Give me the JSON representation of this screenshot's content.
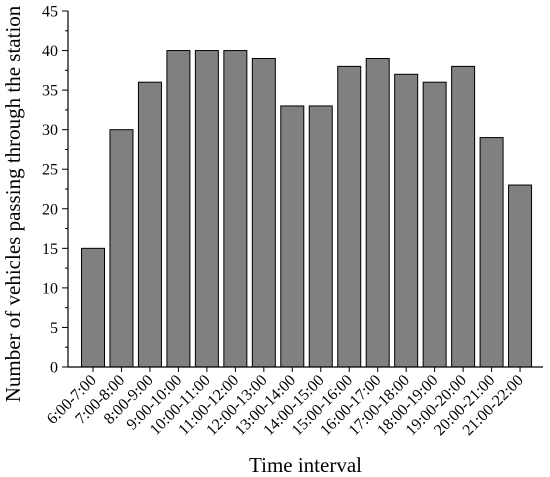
{
  "chart_data": {
    "type": "bar",
    "title": "",
    "xlabel": "Time interval",
    "ylabel": "Number of vehicles passing through the station",
    "categories": [
      "6:00-7:00",
      "7:00-8:00",
      "8:00-9:00",
      "9:00-10:00",
      "10:00-11:00",
      "11:00-12:00",
      "12:00-13:00",
      "13:00-14:00",
      "14:00-15:00",
      "15:00-16:00",
      "16:00-17:00",
      "17:00-18:00",
      "18:00-19:00",
      "19:00-20:00",
      "20:00-21:00",
      "21:00-22:00"
    ],
    "values": [
      15,
      30,
      36,
      40,
      40,
      40,
      39,
      33,
      33,
      38,
      39,
      37,
      36,
      38,
      29,
      23
    ],
    "ylim": [
      0,
      45
    ],
    "yticks": [
      0,
      5,
      10,
      15,
      20,
      25,
      30,
      35,
      40,
      45
    ],
    "grid": false,
    "legend": "none",
    "bar_color": "#808080",
    "bar_edge_color": "#000000"
  }
}
